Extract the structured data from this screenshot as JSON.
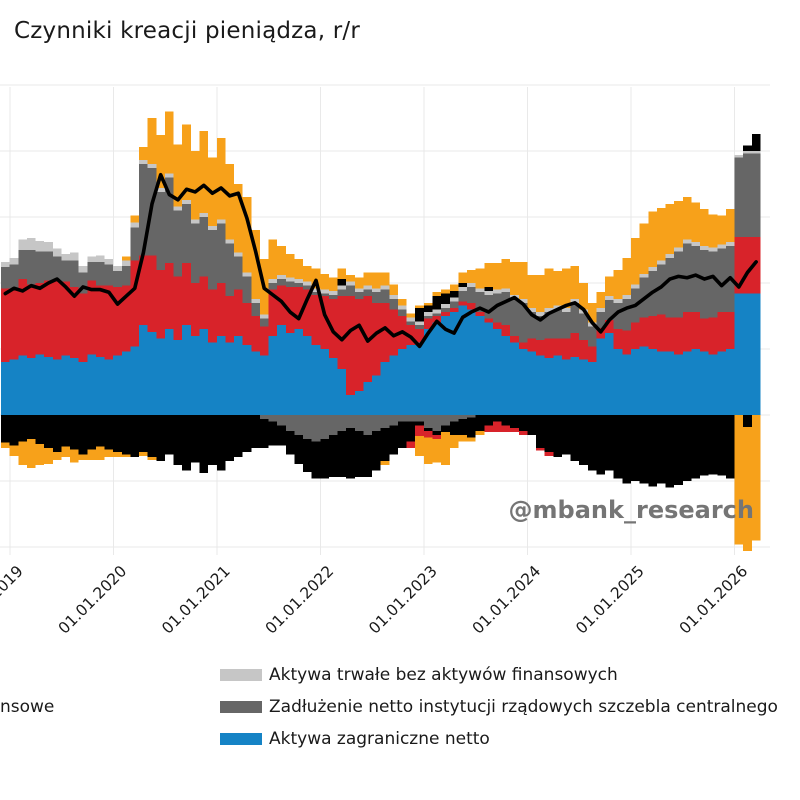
{
  "title": "Czynniki kreacji pieniądza, r/r",
  "watermark": "@mbank_research",
  "colors": {
    "blue": "#1583c5",
    "red": "#d8232a",
    "darkgray": "#666666",
    "lightgray": "#c6c6c6",
    "black": "#000000",
    "orange": "#f7a11a",
    "line": "#000000",
    "gridline": "#e9e9e9",
    "text": "#1a1a1a",
    "watermark_color": "#757575"
  },
  "legend": {
    "cut_fragment": "nsowe",
    "items": [
      {
        "label": "Aktywa trwałe bez aktywów finansowych",
        "color_key": "lightgray"
      },
      {
        "label": "Zadłużenie netto instytucji rządowych szczebla centralnego",
        "color_key": "darkgray"
      },
      {
        "label": "Aktywa zagraniczne netto",
        "color_key": "blue"
      }
    ]
  },
  "chart_data": {
    "type": "bar",
    "subtype": "stacked-bars-with-line",
    "title": "Czynniki kreacji pieniądza, r/r",
    "x_start_month": "2018-12",
    "x_tick_labels": [
      "01.01.2019",
      "01.01.2020",
      "01.01.2021",
      "01.01.2022",
      "01.01.2023",
      "01.01.2024",
      "01.01.2025",
      "01.01.2026"
    ],
    "ylim": [
      -11,
      25
    ],
    "y_gridline_values": [
      25,
      20,
      15,
      10,
      5,
      0,
      -5,
      -10
    ],
    "grid": true,
    "legend_position": "bottom",
    "stack_order_positive": [
      "blue",
      "red",
      "darkgray",
      "lightgray",
      "black",
      "orange"
    ],
    "stack_order_negative": [
      "darkgray",
      "black",
      "red",
      "orange"
    ],
    "series": {
      "blue": [
        4.0,
        4.2,
        4.5,
        4.3,
        4.6,
        4.4,
        4.2,
        4.5,
        4.3,
        4.0,
        4.6,
        4.4,
        4.2,
        4.5,
        4.8,
        5.2,
        6.8,
        6.3,
        5.8,
        6.5,
        5.7,
        6.8,
        6.0,
        6.5,
        5.5,
        6.0,
        5.5,
        6.0,
        5.3,
        4.8,
        4.5,
        6.0,
        6.8,
        6.2,
        6.5,
        6.0,
        5.3,
        5.0,
        4.3,
        3.5,
        1.5,
        1.8,
        2.5,
        3.0,
        4.0,
        4.5,
        5.0,
        5.3,
        5.5,
        6.5,
        7.0,
        7.5,
        7.8,
        8.3,
        8.0,
        7.5,
        7.0,
        6.5,
        6.0,
        5.5,
        5.0,
        4.8,
        4.5,
        4.3,
        4.5,
        4.2,
        4.4,
        4.2,
        4.0,
        5.8,
        6.2,
        5.0,
        4.6,
        5.0,
        5.2,
        5.0,
        4.8,
        4.8,
        4.6,
        4.8,
        5.0,
        4.8,
        4.6,
        4.8,
        5.0,
        9.2,
        9.2,
        9.2
      ],
      "red_pos": [
        5.6,
        5.4,
        5.8,
        5.6,
        5.4,
        5.8,
        6.0,
        5.6,
        5.4,
        5.2,
        5.6,
        5.4,
        5.6,
        5.2,
        5.0,
        6.5,
        5.3,
        5.8,
        5.2,
        5.0,
        4.8,
        4.7,
        4.0,
        4.0,
        4.0,
        4.0,
        3.5,
        3.5,
        3.2,
        2.7,
        2.2,
        3.5,
        3.0,
        3.5,
        3.2,
        3.5,
        3.8,
        4.0,
        4.5,
        5.5,
        7.5,
        7.0,
        6.5,
        5.5,
        4.5,
        3.5,
        2.5,
        1.5,
        1.0,
        0.8,
        0.5,
        0.3,
        0.3,
        0.3,
        0.5,
        0.3,
        0.3,
        0.5,
        0.8,
        0.5,
        0.5,
        1.0,
        1.2,
        1.5,
        1.3,
        1.6,
        1.8,
        1.5,
        1.2,
        0.8,
        1.0,
        1.5,
        1.8,
        2.0,
        2.2,
        2.5,
        2.8,
        2.6,
        2.8,
        3.0,
        2.8,
        2.5,
        2.8,
        3.0,
        2.8,
        4.3,
        4.3,
        4.3
      ],
      "darkgray_pos": [
        1.6,
        1.8,
        2.2,
        2.6,
        2.4,
        2.2,
        1.8,
        1.6,
        2.0,
        1.6,
        1.4,
        1.8,
        1.6,
        1.2,
        1.5,
        2.5,
        6.9,
        6.6,
        5.9,
        6.5,
        5.0,
        4.5,
        4.5,
        4.5,
        4.5,
        4.5,
        4.0,
        2.5,
        2.0,
        1.0,
        0.6,
        0.5,
        0.5,
        0.4,
        0.3,
        0.3,
        0.2,
        0.2,
        0.3,
        0.5,
        0.8,
        0.5,
        0.5,
        0.8,
        1.0,
        0.8,
        0.5,
        0.3,
        0.3,
        0.2,
        0.2,
        0.3,
        0.5,
        0.8,
        1.2,
        1.5,
        1.8,
        2.2,
        2.5,
        2.8,
        3.0,
        2.0,
        1.8,
        2.0,
        2.2,
        2.0,
        2.3,
        2.0,
        1.5,
        1.2,
        1.5,
        2.0,
        2.4,
        2.6,
        3.0,
        3.4,
        3.8,
        4.5,
        5.0,
        5.2,
        5.0,
        5.2,
        5.0,
        4.8,
        5.0,
        6.0,
        6.3,
        6.3
      ],
      "lightgray_pos": [
        0.4,
        0.5,
        0.8,
        0.9,
        0.8,
        0.7,
        0.6,
        0.5,
        0.6,
        0.5,
        0.4,
        0.5,
        0.4,
        0.4,
        0.4,
        0.4,
        0.3,
        0.3,
        0.3,
        0.3,
        0.3,
        0.3,
        0.3,
        0.3,
        0.3,
        0.3,
        0.3,
        0.3,
        0.3,
        0.3,
        0.3,
        0.3,
        0.3,
        0.3,
        0.3,
        0.3,
        0.3,
        0.3,
        0.3,
        0.3,
        0.3,
        0.3,
        0.3,
        0.3,
        0.3,
        0.3,
        0.3,
        0.3,
        0.3,
        0.3,
        0.3,
        0.3,
        0.3,
        0.3,
        0.3,
        0.3,
        0.3,
        0.3,
        0.3,
        0.3,
        0.3,
        0.3,
        0.3,
        0.3,
        0.3,
        0.3,
        0.3,
        0.3,
        0.3,
        0.3,
        0.3,
        0.3,
        0.3,
        0.3,
        0.3,
        0.3,
        0.3,
        0.3,
        0.3,
        0.3,
        0.3,
        0.3,
        0.3,
        0.3,
        0.3,
        0.2,
        0.2,
        0.2
      ],
      "black_pos": [
        0,
        0,
        0,
        0,
        0,
        0,
        0,
        0,
        0,
        0,
        0,
        0,
        0,
        0,
        0,
        0,
        0,
        0,
        0,
        0,
        0,
        0,
        0,
        0,
        0,
        0,
        0,
        0,
        0,
        0,
        0,
        0,
        0,
        0,
        0,
        0,
        0,
        0,
        0,
        0.5,
        0,
        0,
        0,
        0,
        0,
        0,
        0,
        0,
        1.0,
        0.5,
        1.0,
        0.8,
        0.5,
        0.3,
        0,
        0,
        0.3,
        0,
        0,
        0,
        0,
        0,
        0,
        0,
        0,
        0,
        0,
        0,
        0,
        0,
        0,
        0,
        0,
        0,
        0,
        0,
        0,
        0,
        0,
        0,
        0,
        0,
        0,
        0,
        0,
        0,
        0.4,
        1.3,
        1.3
      ],
      "orange_pos": [
        0,
        0,
        0,
        0,
        0,
        0,
        0,
        0,
        0,
        0,
        0,
        0,
        0,
        0,
        0.3,
        0.5,
        1.0,
        3.5,
        4.0,
        4.7,
        4.7,
        5.7,
        5.2,
        6.2,
        5.2,
        6.2,
        5.7,
        5.2,
        5.7,
        5.2,
        4.2,
        3.0,
        2.2,
        1.8,
        1.5,
        1.2,
        1.5,
        1.2,
        1.0,
        0.8,
        0.5,
        0.8,
        1.0,
        1.2,
        1.0,
        0.8,
        0.5,
        0.3,
        0.2,
        0.2,
        0.3,
        0.3,
        0.5,
        0.8,
        1.0,
        1.5,
        1.8,
        2.0,
        2.2,
        2.5,
        2.8,
        2.5,
        2.8,
        3.0,
        2.6,
        3.0,
        2.5,
        2.0,
        1.5,
        1.2,
        1.5,
        2.2,
        2.8,
        3.5,
        3.8,
        4.2,
        4.0,
        3.8,
        3.5,
        3.2,
        3.0,
        2.8,
        2.5,
        2.2,
        2.5,
        0,
        0,
        0
      ],
      "darkgray_neg": [
        0,
        0,
        0,
        0,
        0,
        0,
        0,
        0,
        0,
        0,
        0,
        0,
        0,
        0,
        0,
        0,
        0,
        0,
        0,
        0,
        0,
        0,
        0,
        0,
        0,
        0,
        0,
        0,
        0,
        0,
        -0.3,
        -0.5,
        -0.8,
        -1.2,
        -1.5,
        -1.8,
        -2.0,
        -1.8,
        -1.5,
        -1.2,
        -1.0,
        -1.2,
        -1.5,
        -1.2,
        -1.0,
        -0.8,
        -0.5,
        -0.5,
        -0.5,
        -1.0,
        -1.2,
        -0.8,
        -0.5,
        -0.3,
        -0.2,
        0,
        0,
        0,
        0,
        0,
        0,
        0,
        0,
        0,
        0,
        0,
        0,
        0,
        0,
        0,
        0,
        0,
        0,
        0,
        0,
        0,
        0,
        0,
        0,
        0,
        0,
        0,
        0,
        0,
        0,
        0,
        0,
        0
      ],
      "black_neg": [
        -2.1,
        -2.3,
        -2.0,
        -1.8,
        -2.2,
        -2.5,
        -2.8,
        -2.4,
        -2.6,
        -3.0,
        -2.6,
        -2.4,
        -2.6,
        -2.8,
        -3.0,
        -3.2,
        -2.8,
        -3.2,
        -3.5,
        -3.0,
        -3.8,
        -4.2,
        -3.6,
        -4.4,
        -3.8,
        -4.2,
        -3.5,
        -3.2,
        -2.8,
        -2.5,
        -2.2,
        -1.8,
        -1.5,
        -1.8,
        -2.2,
        -2.5,
        -2.8,
        -3.0,
        -3.2,
        -3.5,
        -3.8,
        -3.5,
        -3.2,
        -3.0,
        -2.5,
        -2.2,
        -2.0,
        -1.5,
        -0.3,
        -0.2,
        -0.3,
        -0.5,
        -1.0,
        -1.2,
        -1.5,
        -1.2,
        -0.8,
        -0.5,
        -0.8,
        -1.0,
        -1.2,
        -1.5,
        -2.5,
        -2.8,
        -3.2,
        -3.0,
        -3.5,
        -3.8,
        -4.2,
        -4.5,
        -4.2,
        -4.8,
        -5.2,
        -5.0,
        -5.2,
        -5.4,
        -5.2,
        -5.5,
        -5.3,
        -5.0,
        -4.8,
        -4.6,
        -4.5,
        -4.6,
        -4.8,
        0,
        -0.9,
        0
      ],
      "red_neg": [
        0,
        0,
        0,
        0,
        0,
        0,
        0,
        0,
        0,
        0,
        0,
        0,
        0,
        0,
        0,
        0,
        0,
        0,
        0,
        0,
        0,
        0,
        0,
        0,
        0,
        0,
        0,
        0,
        0,
        0,
        0,
        0,
        0,
        0,
        0,
        0,
        0,
        0,
        0,
        0,
        0,
        0,
        0,
        0,
        0,
        0,
        0,
        -0.5,
        -0.8,
        -0.5,
        -0.3,
        0,
        0,
        0,
        0,
        0,
        -0.5,
        -0.8,
        -0.5,
        -0.3,
        -0.3,
        0,
        -0.2,
        -0.3,
        0,
        0,
        0,
        0,
        0,
        0,
        0,
        0,
        0,
        0,
        0,
        0,
        0,
        0,
        0,
        0,
        0,
        0,
        0,
        0,
        0,
        0,
        0,
        0
      ],
      "orange_neg": [
        -0.4,
        -0.8,
        -1.8,
        -2.2,
        -1.6,
        -1.2,
        -0.6,
        -0.8,
        -1.0,
        -0.4,
        -0.8,
        -1.0,
        -0.6,
        -0.4,
        -0.2,
        0,
        -0.3,
        -0.2,
        0,
        0,
        0,
        0,
        0,
        0,
        0,
        0,
        0,
        0,
        0,
        0,
        0,
        0,
        0,
        0,
        0,
        0,
        0,
        0,
        0,
        0,
        0,
        0,
        0,
        0,
        -0.3,
        0,
        0,
        0,
        -1.5,
        -2.0,
        -1.8,
        -2.5,
        -1.0,
        -0.5,
        -0.3,
        -0.3,
        0,
        0,
        0,
        0,
        0,
        0,
        0,
        0,
        0,
        0,
        0,
        0,
        0,
        0,
        0,
        0,
        0,
        0,
        0,
        0,
        0,
        0,
        0,
        0,
        0,
        0,
        0,
        0,
        0,
        -9.8,
        -9.4,
        -9.5
      ]
    },
    "line": {
      "name": "suma / agregat (czarna linia)",
      "values": [
        9.2,
        9.6,
        9.4,
        9.8,
        9.6,
        10.0,
        10.3,
        9.7,
        9.0,
        9.7,
        9.5,
        9.5,
        9.3,
        8.4,
        9.0,
        9.6,
        12.3,
        16.0,
        18.2,
        16.7,
        16.3,
        17.1,
        16.9,
        17.4,
        16.8,
        17.2,
        16.6,
        16.8,
        14.9,
        12.4,
        9.6,
        9.1,
        8.6,
        7.8,
        7.3,
        8.8,
        10.2,
        7.6,
        6.3,
        5.7,
        6.4,
        6.8,
        5.6,
        6.2,
        6.6,
        6.0,
        6.3,
        5.9,
        5.2,
        6.2,
        7.1,
        6.5,
        6.2,
        7.4,
        7.8,
        8.1,
        7.8,
        8.3,
        8.6,
        8.9,
        8.4,
        7.6,
        7.2,
        7.7,
        8.0,
        8.3,
        8.5,
        8.0,
        7.0,
        6.3,
        7.2,
        7.8,
        8.1,
        8.3,
        8.8,
        9.3,
        9.7,
        10.3,
        10.5,
        10.4,
        10.6,
        10.3,
        10.5,
        9.8,
        10.4,
        9.7,
        10.8,
        11.6
      ]
    }
  }
}
